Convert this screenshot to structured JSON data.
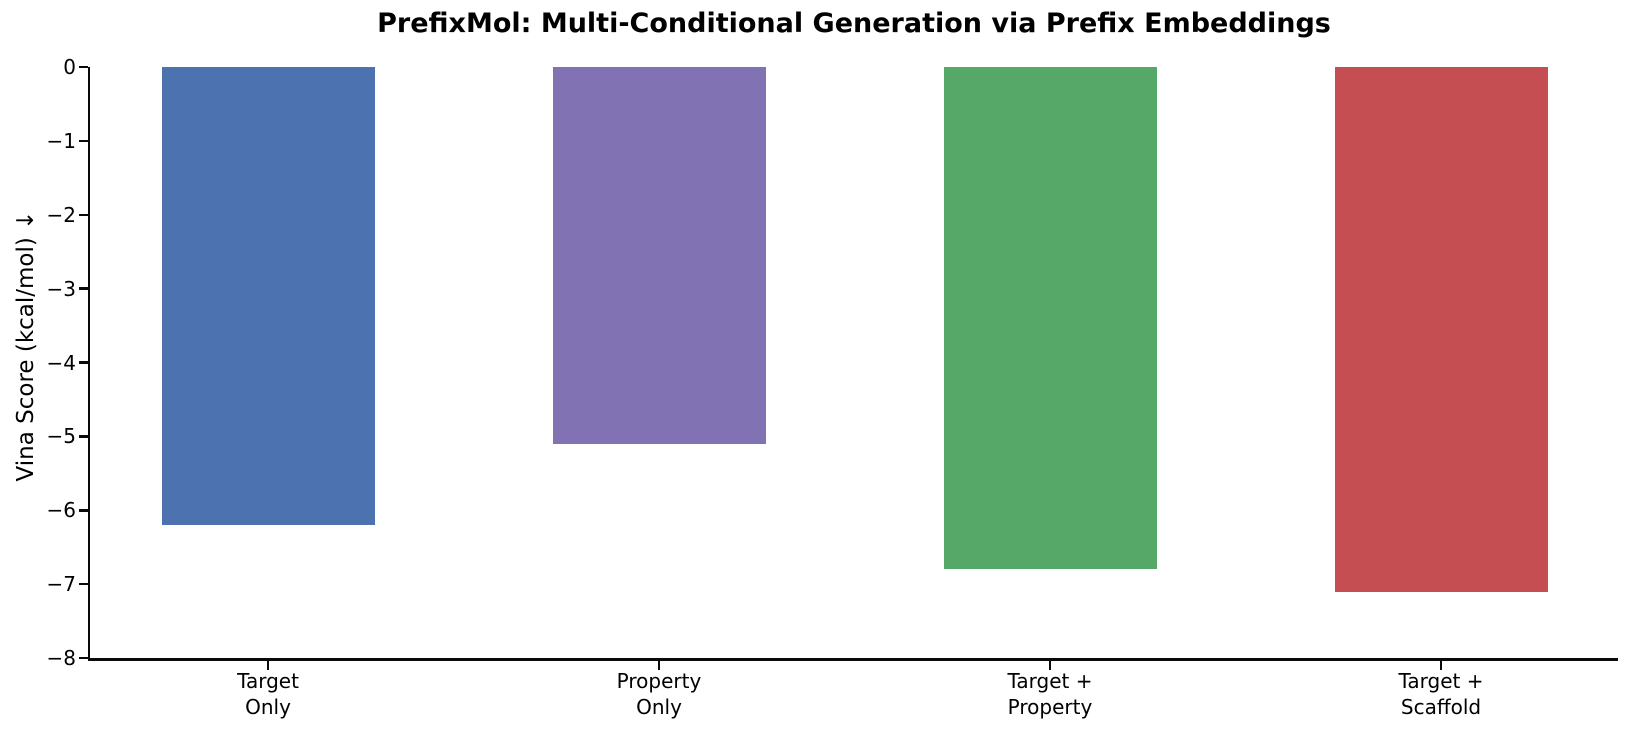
{
  "chart_data": {
    "type": "bar",
    "title": "PrefixMol: Multi-Conditional Generation via Prefix Embeddings",
    "ylabel": "Vina Score (kcal/mol) ↓",
    "xlabel": "",
    "categories": [
      "Target\nOnly",
      "Property\nOnly",
      "Target +\nProperty",
      "Target +\nScaffold"
    ],
    "values": [
      -6.2,
      -5.1,
      -6.8,
      -7.1
    ],
    "bar_colors": [
      "#4C72B0",
      "#8172B3",
      "#55A868",
      "#C44E52"
    ],
    "ylim": [
      -8,
      0
    ],
    "yticks": [
      0,
      -1,
      -2,
      -3,
      -4,
      -5,
      -6,
      -7,
      -8
    ],
    "ytick_labels": [
      "0",
      "−1",
      "−2",
      "−3",
      "−4",
      "−5",
      "−6",
      "−7",
      "−8"
    ],
    "grid": false,
    "legend": false,
    "spines": [
      "left",
      "bottom"
    ],
    "axis_color": "#000000",
    "background_color": "#ffffff"
  }
}
